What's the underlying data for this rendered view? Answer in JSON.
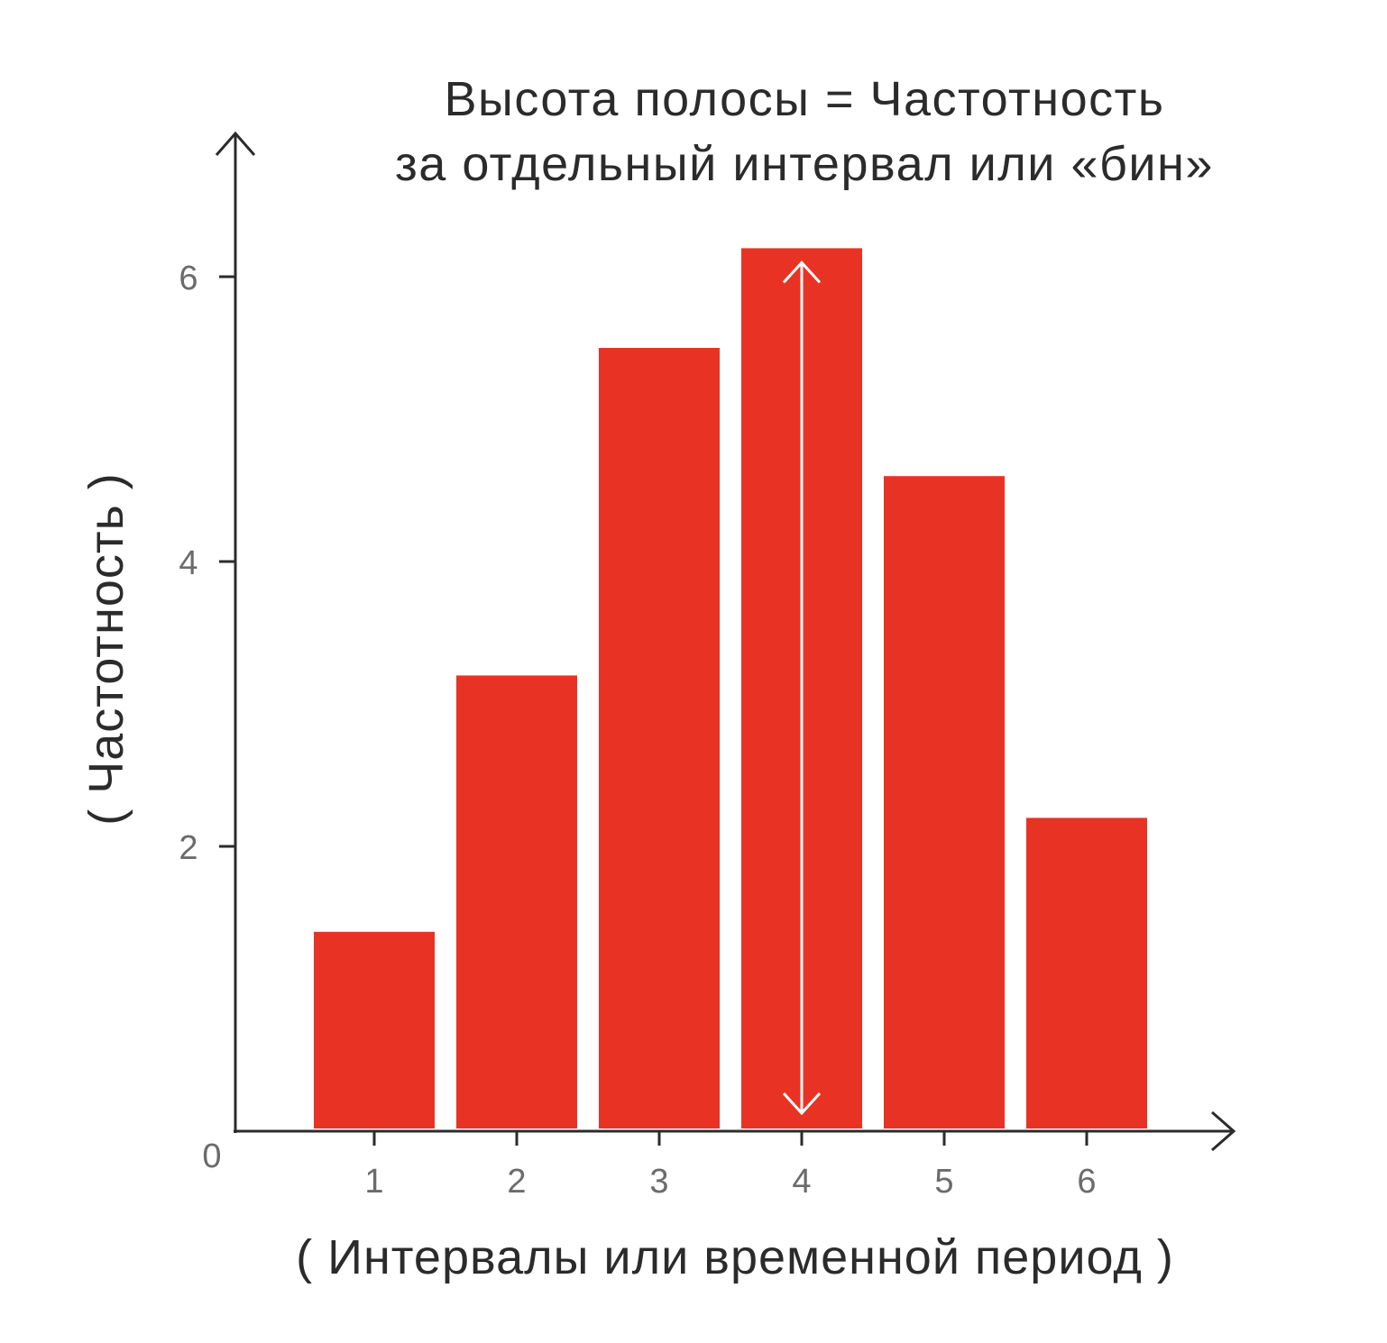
{
  "chart_data": {
    "type": "bar",
    "title_lines": [
      "Высота полосы = Частотность",
      "за отдельный интервал или «бин»"
    ],
    "xlabel": "( Интервалы или временной период )",
    "ylabel": "( Частотность )",
    "categories": [
      "1",
      "2",
      "3",
      "4",
      "5",
      "6"
    ],
    "values": [
      1.4,
      3.2,
      5.5,
      6.2,
      4.6,
      2.2
    ],
    "yticks": [
      "2",
      "4",
      "6"
    ],
    "ytick_values": [
      2,
      4,
      6
    ],
    "origin_label": "0",
    "ylim": [
      0,
      6.9
    ],
    "grid": false,
    "highlight_category": "4",
    "colors": {
      "bar": "#e83324",
      "axis": "#2b2b2b",
      "tick_label": "#6b6b6b",
      "arrow": "#ffffff"
    }
  }
}
